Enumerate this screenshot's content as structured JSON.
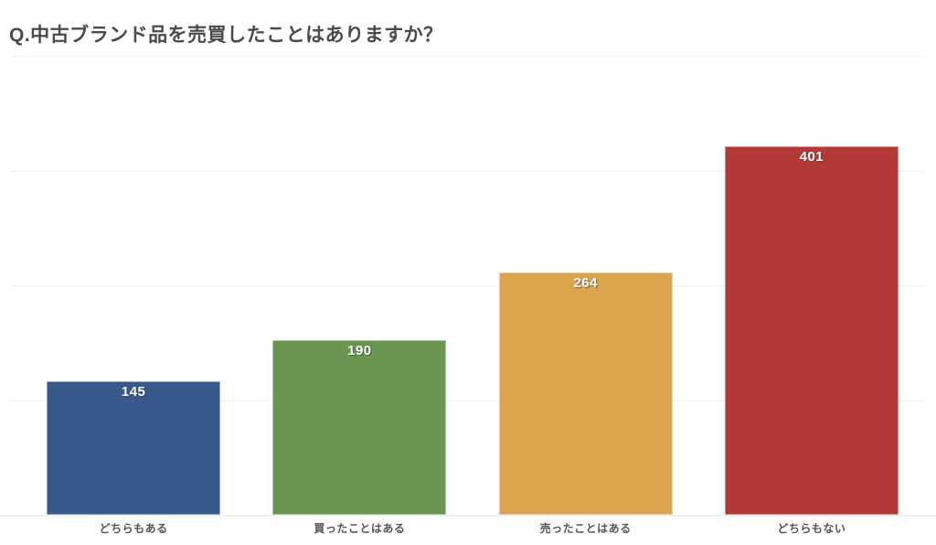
{
  "page": {
    "background_color": "#ffffff"
  },
  "header": {
    "title": "Q.中古ブランド品を売買したことはありますか？",
    "title_color": "#4a4a4a"
  },
  "chart_data": {
    "type": "bar",
    "title": "Q.中古ブランド品を売買したことはありますか？",
    "categories": [
      "どちらもある",
      "買ったことはある",
      "売ったことはある",
      "どちらもない"
    ],
    "values": [
      145,
      190,
      264,
      401
    ],
    "bar_colors": [
      "#38598C",
      "#699551",
      "#DDA44E",
      "#B23936"
    ],
    "value_label_color": "#ffffff",
    "category_label_color": "#555555",
    "xlabel": "",
    "ylabel": "",
    "ylim": [
      0,
      500
    ],
    "gridline_values": [
      125,
      250,
      375,
      500
    ],
    "grid": "horizontal-dotted",
    "legend_position": "none",
    "value_labels": "inside-top"
  }
}
